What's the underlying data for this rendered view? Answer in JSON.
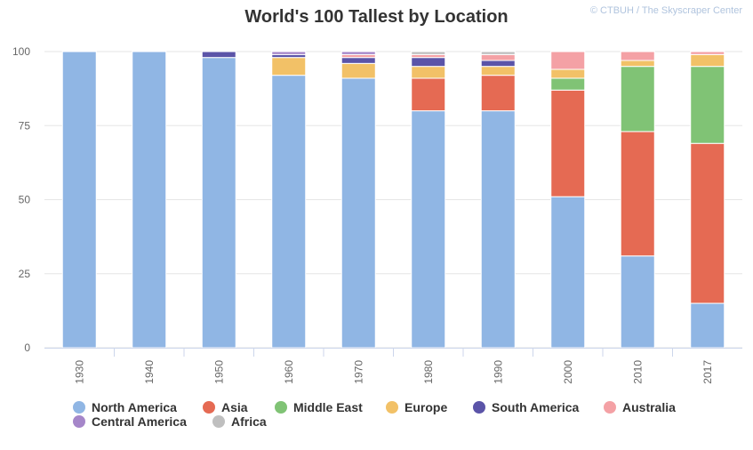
{
  "header": {
    "title": "World's 100 Tallest by Location",
    "credit": "© CTBUH / The Skyscraper Center"
  },
  "chart_data": {
    "type": "bar",
    "stacked": true,
    "title": "World's 100 Tallest by Location",
    "xlabel": "",
    "ylabel": "",
    "ylim": [
      0,
      100
    ],
    "yticks": [
      0,
      25,
      50,
      75,
      100
    ],
    "grid": true,
    "legend_position": "bottom",
    "categories": [
      "1930",
      "1940",
      "1950",
      "1960",
      "1970",
      "1980",
      "1990",
      "2000",
      "2010",
      "2017"
    ],
    "series": [
      {
        "name": "North America",
        "color": "#90b6e4",
        "values": [
          100,
          100,
          98,
          92,
          91,
          80,
          80,
          51,
          31,
          15
        ]
      },
      {
        "name": "Asia",
        "color": "#e56a53",
        "values": [
          0,
          0,
          0,
          0,
          0,
          11,
          12,
          36,
          42,
          54
        ]
      },
      {
        "name": "Middle East",
        "color": "#80c375",
        "values": [
          0,
          0,
          0,
          0,
          0,
          0,
          0,
          4,
          22,
          26
        ]
      },
      {
        "name": "Europe",
        "color": "#f2c167",
        "values": [
          0,
          0,
          0,
          6,
          5,
          4,
          3,
          3,
          2,
          4
        ]
      },
      {
        "name": "South America",
        "color": "#5b54a8",
        "values": [
          0,
          0,
          2,
          1,
          2,
          3,
          2,
          0,
          0,
          0
        ]
      },
      {
        "name": "Australia",
        "color": "#f4a1a5",
        "values": [
          0,
          0,
          0,
          0,
          1,
          1,
          2,
          6,
          3,
          1
        ]
      },
      {
        "name": "Central America",
        "color": "#a586c9",
        "values": [
          0,
          0,
          0,
          1,
          1,
          0,
          0,
          0,
          0,
          0
        ]
      },
      {
        "name": "Africa",
        "color": "#bfbfbf",
        "values": [
          0,
          0,
          0,
          0,
          0,
          1,
          1,
          0,
          0,
          0
        ]
      }
    ]
  }
}
